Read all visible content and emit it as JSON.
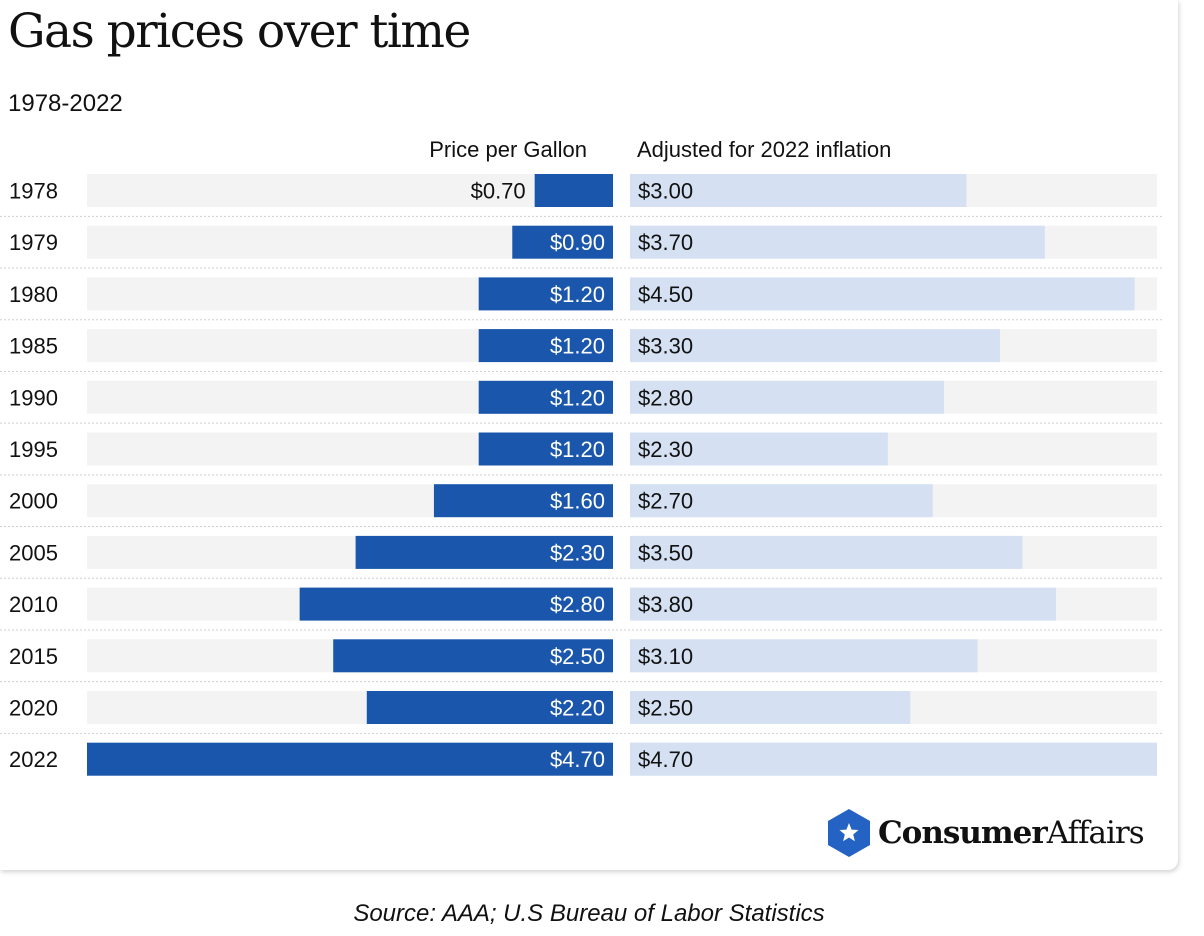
{
  "title": "Gas prices over time",
  "subtitle": "1978-2022",
  "source": "Source: AAA; U.S Bureau of Labor Statistics",
  "logo": {
    "bold": "Consumer",
    "light": "Affairs",
    "icon": "star-shield-icon"
  },
  "colors": {
    "price_bar": "#1a56ab",
    "inflation_bar": "#d5e1f3",
    "track": "#f3f3f3",
    "divider": "#cfcfcf",
    "logo_badge": "#2462c4"
  },
  "chart_data": {
    "type": "bar",
    "orientation": "horizontal",
    "layout": "mirrored",
    "categories": [
      "1978",
      "1979",
      "1980",
      "1985",
      "1990",
      "1995",
      "2000",
      "2005",
      "2010",
      "2015",
      "2020",
      "2022"
    ],
    "series": [
      {
        "name": "Price per Gallon",
        "values": [
          0.7,
          0.9,
          1.2,
          1.2,
          1.2,
          1.2,
          1.6,
          2.3,
          2.8,
          2.5,
          2.2,
          4.7
        ],
        "labels": [
          "$0.70",
          "$0.90",
          "$1.20",
          "$1.20",
          "$1.20",
          "$1.20",
          "$1.60",
          "$2.30",
          "$2.80",
          "$2.50",
          "$2.20",
          "$4.70"
        ],
        "direction": "leftward",
        "color": "#1a56ab"
      },
      {
        "name": "Adjusted for 2022 inflation",
        "values": [
          3.0,
          3.7,
          4.5,
          3.3,
          2.8,
          2.3,
          2.7,
          3.5,
          3.8,
          3.1,
          2.5,
          4.7
        ],
        "labels": [
          "$3.00",
          "$3.70",
          "$4.50",
          "$3.30",
          "$2.80",
          "$2.30",
          "$2.70",
          "$3.50",
          "$3.80",
          "$3.10",
          "$2.50",
          "$4.70"
        ],
        "direction": "rightward",
        "color": "#d5e1f3"
      }
    ],
    "xlim": [
      0,
      4.7
    ],
    "grid": false,
    "legend": "column-headers"
  }
}
